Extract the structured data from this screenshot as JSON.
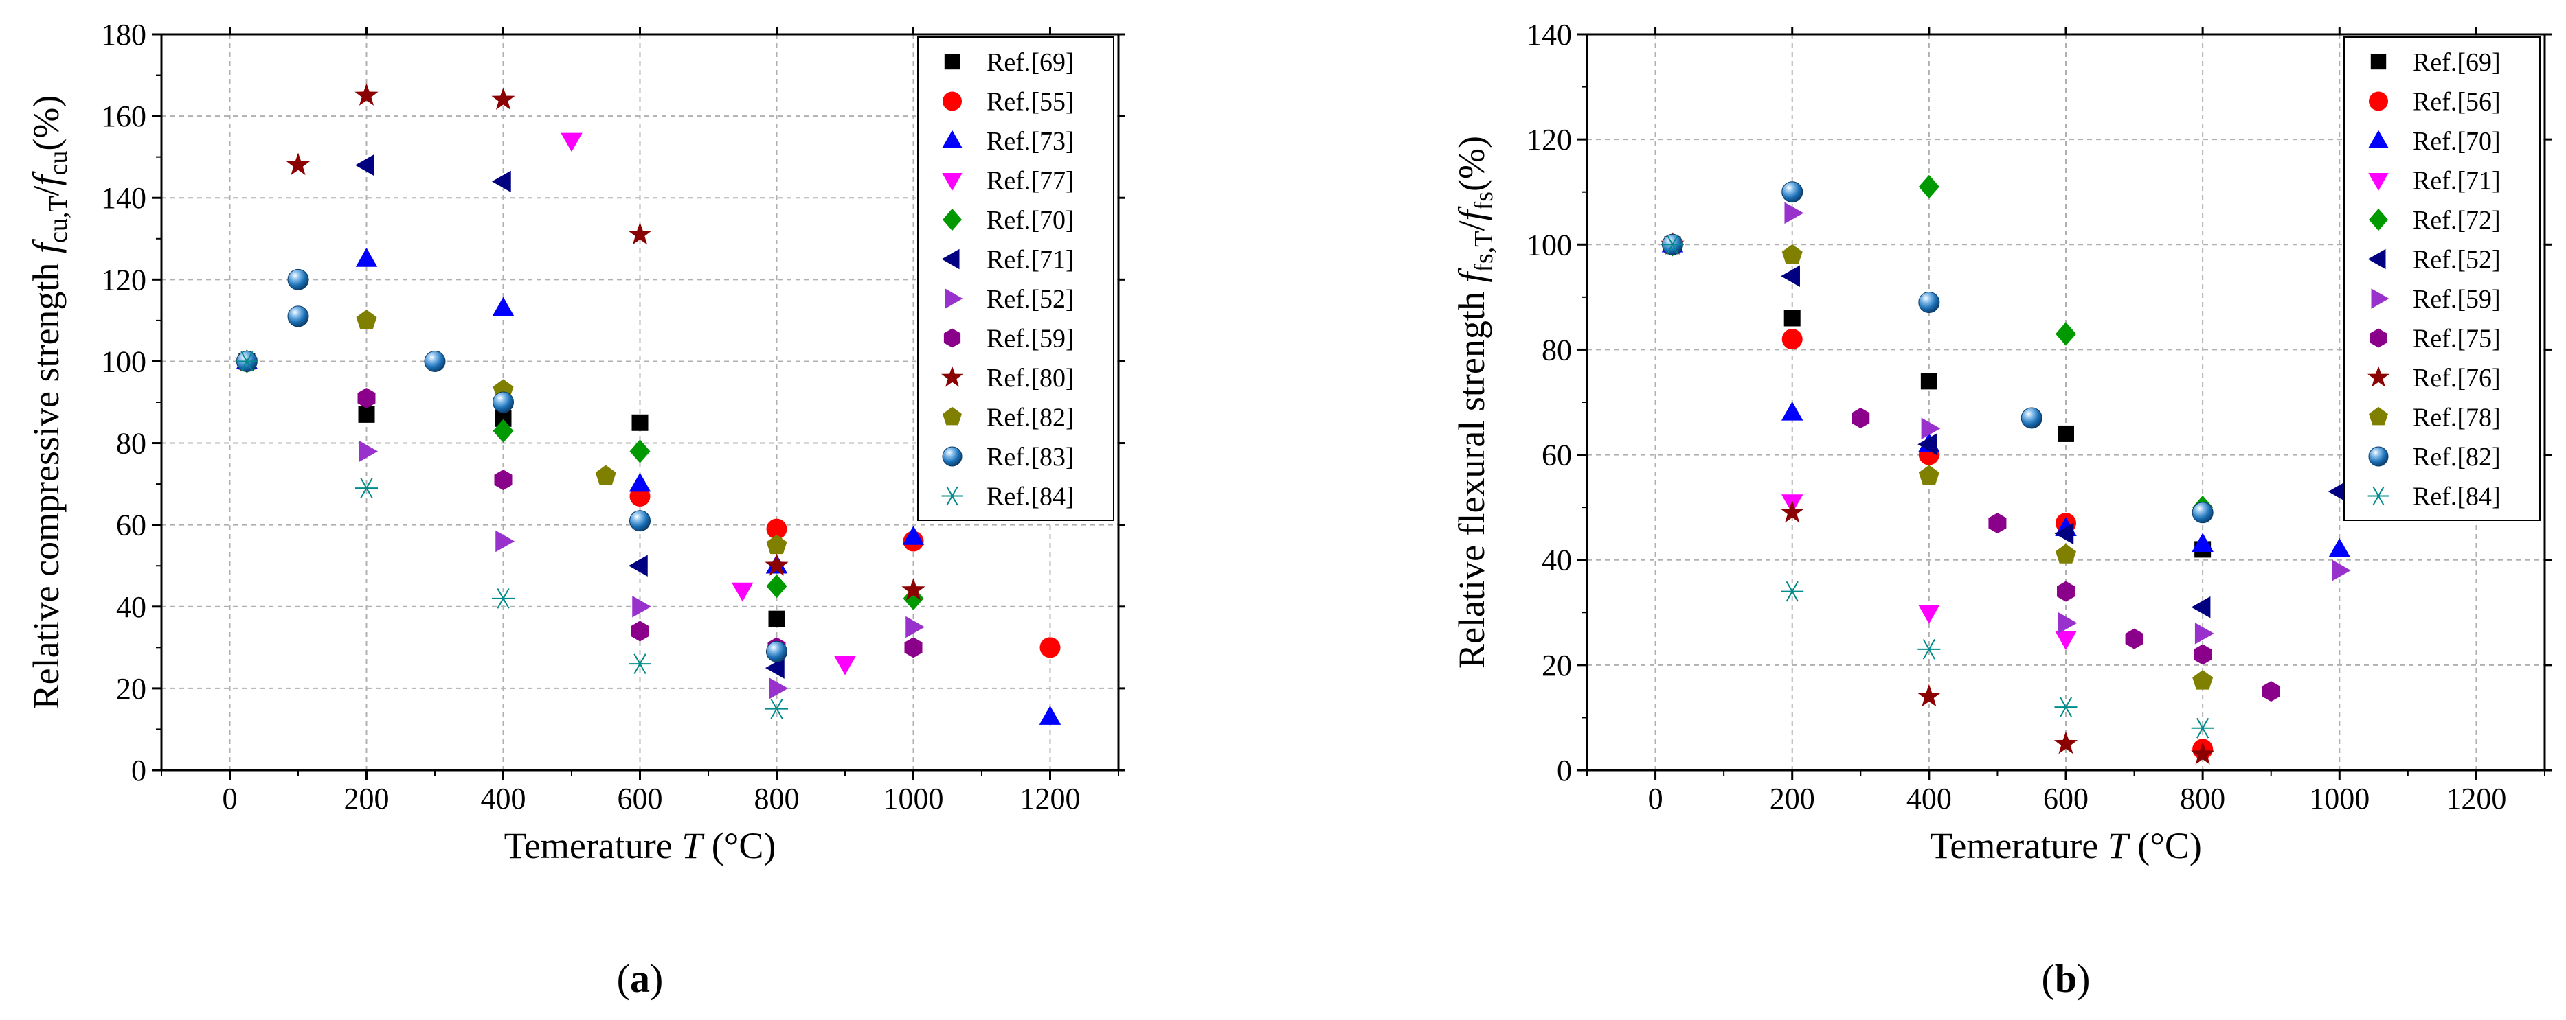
{
  "chart_data": [
    {
      "type": "scatter",
      "panel_label": "(a)",
      "title": "",
      "xlabel_text": "Temerature ",
      "xlabel_var": "T",
      "xlabel_unit": " (°C)",
      "ylabel_text": "Relative compressive strength ",
      "ylabel_f1": "f",
      "ylabel_sub1": "cu,T",
      "ylabel_slash": "/",
      "ylabel_f2": "f",
      "ylabel_sub2": "cu",
      "ylabel_unit": "(%)",
      "xlim": [
        -100,
        1300
      ],
      "ylim": [
        0,
        180
      ],
      "xticks": [
        0,
        200,
        400,
        600,
        800,
        1000,
        1200
      ],
      "yticks": [
        0,
        20,
        40,
        60,
        80,
        100,
        120,
        140,
        160,
        180
      ],
      "grid": true,
      "legend_position": "top-right",
      "series": [
        {
          "name": "Ref.[69]",
          "marker": "square",
          "color": "#000000",
          "points": [
            [
              25,
              100
            ],
            [
              200,
              87
            ],
            [
              400,
              86
            ],
            [
              600,
              85
            ],
            [
              800,
              37
            ]
          ]
        },
        {
          "name": "Ref.[55]",
          "marker": "circle",
          "color": "#ff0000",
          "points": [
            [
              25,
              100
            ],
            [
              600,
              67
            ],
            [
              800,
              59
            ],
            [
              1000,
              56
            ],
            [
              1200,
              30
            ]
          ]
        },
        {
          "name": "Ref.[73]",
          "marker": "triangle-up",
          "color": "#0000ff",
          "points": [
            [
              25,
              100
            ],
            [
              200,
              125
            ],
            [
              400,
              113
            ],
            [
              600,
              70
            ],
            [
              800,
              50
            ],
            [
              1000,
              57
            ],
            [
              1200,
              13
            ]
          ]
        },
        {
          "name": "Ref.[77]",
          "marker": "triangle-down",
          "color": "#ff00ff",
          "points": [
            [
              500,
              154
            ],
            [
              750,
              44
            ],
            [
              900,
              26
            ]
          ]
        },
        {
          "name": "Ref.[70]",
          "marker": "diamond",
          "color": "#009900",
          "points": [
            [
              25,
              100
            ],
            [
              400,
              83
            ],
            [
              600,
              78
            ],
            [
              800,
              45
            ],
            [
              1000,
              42
            ]
          ]
        },
        {
          "name": "Ref.[71]",
          "marker": "triangle-left",
          "color": "#000080",
          "points": [
            [
              200,
              148
            ],
            [
              400,
              144
            ],
            [
              600,
              50
            ],
            [
              800,
              25
            ]
          ]
        },
        {
          "name": "Ref.[52]",
          "marker": "triangle-right",
          "color": "#9932cc",
          "points": [
            [
              200,
              78
            ],
            [
              400,
              56
            ],
            [
              600,
              40
            ],
            [
              800,
              20
            ],
            [
              1000,
              35
            ]
          ]
        },
        {
          "name": "Ref.[59]",
          "marker": "hexagon",
          "color": "#8b008b",
          "points": [
            [
              200,
              91
            ],
            [
              400,
              71
            ],
            [
              600,
              34
            ],
            [
              800,
              30
            ],
            [
              1000,
              30
            ]
          ]
        },
        {
          "name": "Ref.[80]",
          "marker": "star",
          "color": "#8b0000",
          "points": [
            [
              25,
              100
            ],
            [
              100,
              148
            ],
            [
              200,
              165
            ],
            [
              400,
              164
            ],
            [
              600,
              131
            ],
            [
              800,
              50
            ],
            [
              1000,
              44
            ]
          ]
        },
        {
          "name": "Ref.[82]",
          "marker": "pentagon",
          "color": "#808000",
          "points": [
            [
              25,
              100
            ],
            [
              200,
              110
            ],
            [
              400,
              93
            ],
            [
              550,
              72
            ],
            [
              800,
              55
            ]
          ]
        },
        {
          "name": "Ref.[83]",
          "marker": "ball",
          "color": "#1a6fb5",
          "points": [
            [
              25,
              100
            ],
            [
              100,
              120
            ],
            [
              100,
              111
            ],
            [
              300,
              100
            ],
            [
              400,
              90
            ],
            [
              600,
              61
            ],
            [
              800,
              29
            ]
          ]
        },
        {
          "name": "Ref.[84]",
          "marker": "asterisk",
          "color": "#008b8b",
          "points": [
            [
              25,
              100
            ],
            [
              200,
              69
            ],
            [
              400,
              42
            ],
            [
              600,
              26
            ],
            [
              800,
              15
            ]
          ]
        }
      ]
    },
    {
      "type": "scatter",
      "panel_label": "(b)",
      "title": "",
      "xlabel_text": "Temerature ",
      "xlabel_var": "T",
      "xlabel_unit": " (°C)",
      "ylabel_text": "Relative flexural strength ",
      "ylabel_f1": "f",
      "ylabel_sub1": "fs,T",
      "ylabel_slash": "/",
      "ylabel_f2": "f",
      "ylabel_sub2": "fs",
      "ylabel_unit": "(%)",
      "xlim": [
        -100,
        1300
      ],
      "ylim": [
        0,
        140
      ],
      "xticks": [
        0,
        200,
        400,
        600,
        800,
        1000,
        1200
      ],
      "yticks": [
        0,
        20,
        40,
        60,
        80,
        100,
        120,
        140
      ],
      "grid": true,
      "legend_position": "top-right",
      "series": [
        {
          "name": "Ref.[69]",
          "marker": "square",
          "color": "#000000",
          "points": [
            [
              25,
              100
            ],
            [
              200,
              86
            ],
            [
              400,
              74
            ],
            [
              600,
              64
            ],
            [
              800,
              42
            ]
          ]
        },
        {
          "name": "Ref.[56]",
          "marker": "circle",
          "color": "#ff0000",
          "points": [
            [
              25,
              100
            ],
            [
              200,
              82
            ],
            [
              400,
              60
            ],
            [
              600,
              47
            ],
            [
              800,
              4
            ]
          ]
        },
        {
          "name": "Ref.[70]",
          "marker": "triangle-up",
          "color": "#0000ff",
          "points": [
            [
              25,
              100
            ],
            [
              200,
              68
            ],
            [
              400,
              62
            ],
            [
              600,
              46
            ],
            [
              800,
              43
            ],
            [
              1000,
              42
            ]
          ]
        },
        {
          "name": "Ref.[71]",
          "marker": "triangle-down",
          "color": "#ff00ff",
          "points": [
            [
              200,
              51
            ],
            [
              400,
              30
            ],
            [
              600,
              25
            ]
          ]
        },
        {
          "name": "Ref.[72]",
          "marker": "diamond",
          "color": "#009900",
          "points": [
            [
              25,
              100
            ],
            [
              400,
              111
            ],
            [
              600,
              83
            ],
            [
              800,
              50
            ]
          ]
        },
        {
          "name": "Ref.[52]",
          "marker": "triangle-left",
          "color": "#000080",
          "points": [
            [
              200,
              94
            ],
            [
              400,
              62
            ],
            [
              600,
              45
            ],
            [
              800,
              31
            ],
            [
              1000,
              53
            ]
          ]
        },
        {
          "name": "Ref.[59]",
          "marker": "triangle-right",
          "color": "#9932cc",
          "points": [
            [
              200,
              106
            ],
            [
              400,
              65
            ],
            [
              600,
              28
            ],
            [
              800,
              26
            ],
            [
              1000,
              38
            ]
          ]
        },
        {
          "name": "Ref.[75]",
          "marker": "hexagon",
          "color": "#8b008b",
          "points": [
            [
              300,
              67
            ],
            [
              500,
              47
            ],
            [
              600,
              34
            ],
            [
              700,
              25
            ],
            [
              800,
              22
            ],
            [
              900,
              15
            ]
          ]
        },
        {
          "name": "Ref.[76]",
          "marker": "star",
          "color": "#8b0000",
          "points": [
            [
              25,
              100
            ],
            [
              200,
              49
            ],
            [
              400,
              14
            ],
            [
              600,
              5
            ],
            [
              800,
              3
            ]
          ]
        },
        {
          "name": "Ref.[78]",
          "marker": "pentagon",
          "color": "#808000",
          "points": [
            [
              25,
              100
            ],
            [
              200,
              98
            ],
            [
              400,
              56
            ],
            [
              600,
              41
            ],
            [
              800,
              17
            ]
          ]
        },
        {
          "name": "Ref.[82]",
          "marker": "ball",
          "color": "#1a6fb5",
          "points": [
            [
              25,
              100
            ],
            [
              200,
              110
            ],
            [
              400,
              89
            ],
            [
              550,
              67
            ],
            [
              800,
              49
            ]
          ]
        },
        {
          "name": "Ref.[84]",
          "marker": "asterisk",
          "color": "#008b8b",
          "points": [
            [
              25,
              100
            ],
            [
              200,
              34
            ],
            [
              400,
              23
            ],
            [
              600,
              12
            ],
            [
              800,
              8
            ]
          ]
        }
      ]
    }
  ]
}
